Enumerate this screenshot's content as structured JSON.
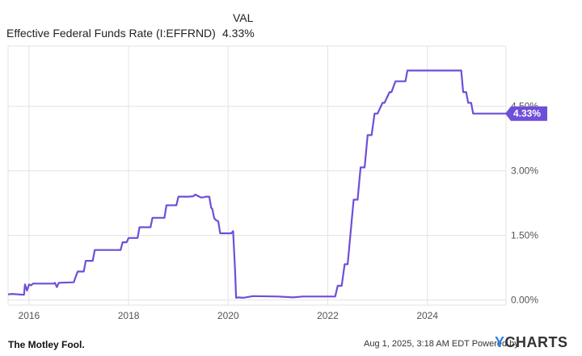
{
  "header": {
    "val_label": "VAL",
    "series_name": "Effective Federal Funds Rate (I:EFFRND)",
    "current_value": "4.33%"
  },
  "footer": {
    "brand": "The Motley Fool.",
    "timestamp": "Aug 1, 2025, 3:18 AM EDT Powered by",
    "ycharts_y": "Y",
    "ycharts_rest": "CHARTS"
  },
  "colors": {
    "line": "#6f4ed9",
    "grid": "#e3e3e3",
    "badge": "#6f4ed9"
  },
  "chart_data": {
    "type": "line",
    "title": "",
    "xlabel": "",
    "ylabel": "",
    "x_ticks": [
      "2016",
      "2018",
      "2020",
      "2022",
      "2024"
    ],
    "x_tick_values": [
      2016,
      2018,
      2020,
      2022,
      2024
    ],
    "y_ticks": [
      "0.00%",
      "1.50%",
      "3.00%",
      "4.50%"
    ],
    "y_tick_values": [
      0,
      1.5,
      3.0,
      4.5
    ],
    "xlim": [
      2015.58,
      2025.58
    ],
    "ylim": [
      -0.12,
      5.9
    ],
    "grid": true,
    "last_value_label": "4.33%",
    "series": [
      {
        "x": [
          2015.58,
          2015.66,
          2015.9,
          2015.92,
          2015.96,
          2016.0,
          2016.04,
          2016.08,
          2016.12,
          2016.5,
          2016.52,
          2016.56,
          2016.6,
          2016.9,
          2016.94,
          2016.98,
          2017.1,
          2017.14,
          2017.28,
          2017.32,
          2017.44,
          2017.48,
          2017.84,
          2017.88,
          2017.96,
          2018.0,
          2018.18,
          2018.22,
          2018.44,
          2018.48,
          2018.72,
          2018.76,
          2018.96,
          2019.0,
          2019.2,
          2019.3,
          2019.34,
          2019.42,
          2019.46,
          2019.52,
          2019.56,
          2019.62,
          2019.66,
          2019.68,
          2019.72,
          2019.76,
          2019.8,
          2019.84,
          2019.9,
          2020.06,
          2020.1,
          2020.14,
          2020.16,
          2020.2,
          2020.3,
          2020.5,
          2021.0,
          2021.3,
          2021.5,
          2021.6,
          2021.8,
          2022.0,
          2022.15,
          2022.2,
          2022.28,
          2022.34,
          2022.4,
          2022.46,
          2022.52,
          2022.6,
          2022.66,
          2022.74,
          2022.8,
          2022.88,
          2022.94,
          2023.0,
          2023.1,
          2023.14,
          2023.24,
          2023.28,
          2023.36,
          2023.42,
          2023.56,
          2023.6,
          2024.0,
          2024.4,
          2024.68,
          2024.72,
          2024.78,
          2024.82,
          2024.88,
          2024.92,
          2025.58
        ],
        "y": [
          0.13,
          0.14,
          0.12,
          0.36,
          0.22,
          0.36,
          0.34,
          0.38,
          0.38,
          0.38,
          0.4,
          0.3,
          0.4,
          0.41,
          0.55,
          0.66,
          0.66,
          0.91,
          0.91,
          1.16,
          1.16,
          1.16,
          1.16,
          1.34,
          1.34,
          1.44,
          1.44,
          1.69,
          1.69,
          1.91,
          1.91,
          2.2,
          2.2,
          2.4,
          2.4,
          2.41,
          2.45,
          2.4,
          2.38,
          2.39,
          2.4,
          2.4,
          2.14,
          2.12,
          1.9,
          1.85,
          1.83,
          1.55,
          1.55,
          1.55,
          1.6,
          0.65,
          0.05,
          0.06,
          0.05,
          0.09,
          0.08,
          0.06,
          0.08,
          0.08,
          0.08,
          0.08,
          0.08,
          0.33,
          0.33,
          0.83,
          0.83,
          1.58,
          2.33,
          2.33,
          3.08,
          3.08,
          3.83,
          3.83,
          4.33,
          4.33,
          4.58,
          4.58,
          4.83,
          4.83,
          5.08,
          5.08,
          5.08,
          5.33,
          5.33,
          5.33,
          5.33,
          4.83,
          4.83,
          4.58,
          4.58,
          4.33,
          4.33
        ]
      }
    ]
  }
}
